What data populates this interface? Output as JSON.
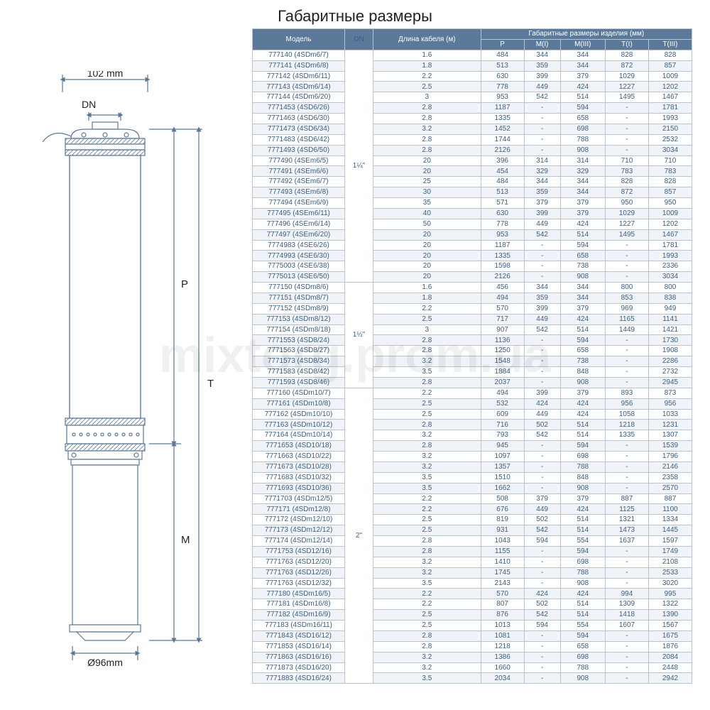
{
  "title": "Габаритные размеры",
  "watermark": "mixtorg.prom.ua",
  "diagram": {
    "width_top_label": "102 mm",
    "dn_label": "DN",
    "bottom_label": "Ø96mm",
    "dim_p": "P",
    "dim_t": "T",
    "dim_m": "M"
  },
  "headers": {
    "model": "Модель",
    "dn": "DN",
    "cable_len": "Длина кабеля (м)",
    "dims_group": "Габаритные размеры изделия (мм)",
    "p": "P",
    "m1": "M(I)",
    "m3": "M(III)",
    "t1": "T(I)",
    "t3": "T(III)"
  },
  "groups": [
    {
      "dn": "1¼\"",
      "rows": [
        {
          "m": "777140 (4SDm6/7)",
          "c": "1.6",
          "p": "484",
          "m1": "344",
          "m3": "344",
          "t1": "828",
          "t3": "828"
        },
        {
          "m": "777141 (4SDm6/8)",
          "c": "1.8",
          "p": "513",
          "m1": "359",
          "m3": "344",
          "t1": "872",
          "t3": "857"
        },
        {
          "m": "777142 (4SDm6/11)",
          "c": "2.2",
          "p": "630",
          "m1": "399",
          "m3": "379",
          "t1": "1029",
          "t3": "1009"
        },
        {
          "m": "777143 (4SDm6/14)",
          "c": "2.5",
          "p": "778",
          "m1": "449",
          "m3": "424",
          "t1": "1227",
          "t3": "1202"
        },
        {
          "m": "777144 (4SDm6/20)",
          "c": "3",
          "p": "953",
          "m1": "542",
          "m3": "514",
          "t1": "1495",
          "t3": "1467"
        },
        {
          "m": "7771453 (4SD6/26)",
          "c": "2.8",
          "p": "1187",
          "m1": "-",
          "m3": "594",
          "t1": "-",
          "t3": "1781"
        },
        {
          "m": "7771463 (4SD6/30)",
          "c": "2.8",
          "p": "1335",
          "m1": "-",
          "m3": "658",
          "t1": "-",
          "t3": "1993"
        },
        {
          "m": "7771473 (4SD6/34)",
          "c": "3.2",
          "p": "1452",
          "m1": "-",
          "m3": "698",
          "t1": "-",
          "t3": "2150"
        },
        {
          "m": "7771483 (4SD6/42)",
          "c": "2.8",
          "p": "1744",
          "m1": "-",
          "m3": "788",
          "t1": "-",
          "t3": "2532"
        },
        {
          "m": "7771493 (4SD6/50)",
          "c": "2.8",
          "p": "2126",
          "m1": "-",
          "m3": "908",
          "t1": "-",
          "t3": "3034"
        },
        {
          "m": "777490 (4SEm6/5)",
          "c": "20",
          "p": "396",
          "m1": "314",
          "m3": "314",
          "t1": "710",
          "t3": "710"
        },
        {
          "m": "777491 (4SEm6/6)",
          "c": "20",
          "p": "454",
          "m1": "329",
          "m3": "329",
          "t1": "783",
          "t3": "783"
        },
        {
          "m": "777492 (4SEm6/7)",
          "c": "25",
          "p": "484",
          "m1": "344",
          "m3": "344",
          "t1": "828",
          "t3": "828"
        },
        {
          "m": "777493 (4SEm6/8)",
          "c": "30",
          "p": "513",
          "m1": "359",
          "m3": "344",
          "t1": "872",
          "t3": "857"
        },
        {
          "m": "777494 (4SEm6/9)",
          "c": "35",
          "p": "571",
          "m1": "379",
          "m3": "379",
          "t1": "950",
          "t3": "950"
        },
        {
          "m": "777495 (4SEm6/11)",
          "c": "40",
          "p": "630",
          "m1": "399",
          "m3": "379",
          "t1": "1029",
          "t3": "1009"
        },
        {
          "m": "777496 (4SEm6/14)",
          "c": "50",
          "p": "778",
          "m1": "449",
          "m3": "424",
          "t1": "1227",
          "t3": "1202"
        },
        {
          "m": "777497 (4SEm6/20)",
          "c": "20",
          "p": "953",
          "m1": "542",
          "m3": "514",
          "t1": "1495",
          "t3": "1467"
        },
        {
          "m": "7774983 (4SE6/26)",
          "c": "20",
          "p": "1187",
          "m1": "-",
          "m3": "594",
          "t1": "-",
          "t3": "1781"
        },
        {
          "m": "7774993 (4SE6/30)",
          "c": "20",
          "p": "1335",
          "m1": "-",
          "m3": "658",
          "t1": "-",
          "t3": "1993"
        },
        {
          "m": "7775003 (4SE6/38)",
          "c": "20",
          "p": "1598",
          "m1": "-",
          "m3": "738",
          "t1": "-",
          "t3": "2336"
        },
        {
          "m": "7775013 (4SE6/50)",
          "c": "20",
          "p": "2126",
          "m1": "-",
          "m3": "908",
          "t1": "-",
          "t3": "3034"
        }
      ]
    },
    {
      "dn": "1½\"",
      "rows": [
        {
          "m": "777150 (4SDm8/6)",
          "c": "1.6",
          "p": "456",
          "m1": "344",
          "m3": "344",
          "t1": "800",
          "t3": "800"
        },
        {
          "m": "777151 (4SDm8/7)",
          "c": "1.8",
          "p": "494",
          "m1": "359",
          "m3": "344",
          "t1": "853",
          "t3": "838"
        },
        {
          "m": "777152 (4SDm8/9)",
          "c": "2.2",
          "p": "570",
          "m1": "399",
          "m3": "379",
          "t1": "969",
          "t3": "949"
        },
        {
          "m": "777153 (4SDm8/12)",
          "c": "2.5",
          "p": "717",
          "m1": "449",
          "m3": "424",
          "t1": "1165",
          "t3": "1141"
        },
        {
          "m": "777154 (4SDm8/18)",
          "c": "3",
          "p": "907",
          "m1": "542",
          "m3": "514",
          "t1": "1449",
          "t3": "1421"
        },
        {
          "m": "7771553 (4SD8/24)",
          "c": "2.8",
          "p": "1136",
          "m1": "-",
          "m3": "594",
          "t1": "-",
          "t3": "1730"
        },
        {
          "m": "7771563 (4SD8/27)",
          "c": "2.8",
          "p": "1250",
          "m1": "-",
          "m3": "658",
          "t1": "-",
          "t3": "1908"
        },
        {
          "m": "7771573 (4SD8/34)",
          "c": "3.2",
          "p": "1548",
          "m1": "-",
          "m3": "738",
          "t1": "-",
          "t3": "2286"
        },
        {
          "m": "7771583 (4SD8/42)",
          "c": "3.5",
          "p": "1884",
          "m1": "-",
          "m3": "848",
          "t1": "-",
          "t3": "2732"
        },
        {
          "m": "7771593 (4SD8/46)",
          "c": "2.8",
          "p": "2037",
          "m1": "-",
          "m3": "908",
          "t1": "-",
          "t3": "2945"
        }
      ]
    },
    {
      "dn": "2\"",
      "rows": [
        {
          "m": "777160 (4SDm10/7)",
          "c": "2.2",
          "p": "494",
          "m1": "399",
          "m3": "379",
          "t1": "893",
          "t3": "873"
        },
        {
          "m": "777161 (4SDm10/8)",
          "c": "2.5",
          "p": "532",
          "m1": "424",
          "m3": "424",
          "t1": "956",
          "t3": "956"
        },
        {
          "m": "777162 (4SDm10/10)",
          "c": "2.5",
          "p": "609",
          "m1": "449",
          "m3": "424",
          "t1": "1058",
          "t3": "1033"
        },
        {
          "m": "777163 (4SDm10/12)",
          "c": "2.8",
          "p": "716",
          "m1": "502",
          "m3": "514",
          "t1": "1218",
          "t3": "1231"
        },
        {
          "m": "777164 (4SDm10/14)",
          "c": "3.2",
          "p": "793",
          "m1": "542",
          "m3": "514",
          "t1": "1335",
          "t3": "1307"
        },
        {
          "m": "7771653 (4SD10/18)",
          "c": "2.8",
          "p": "945",
          "m1": "-",
          "m3": "594",
          "t1": "-",
          "t3": "1539"
        },
        {
          "m": "7771663 (4SD10/22)",
          "c": "3.2",
          "p": "1097",
          "m1": "-",
          "m3": "698",
          "t1": "-",
          "t3": "1796"
        },
        {
          "m": "7771673 (4SD10/28)",
          "c": "3.2",
          "p": "1357",
          "m1": "-",
          "m3": "788",
          "t1": "-",
          "t3": "2146"
        },
        {
          "m": "7771683 (4SD10/32)",
          "c": "3.5",
          "p": "1510",
          "m1": "-",
          "m3": "848",
          "t1": "-",
          "t3": "2358"
        },
        {
          "m": "7771693 (4SD10/36)",
          "c": "3.5",
          "p": "1662",
          "m1": "-",
          "m3": "908",
          "t1": "-",
          "t3": "2570"
        },
        {
          "m": "7771703 (4SDm12/5)",
          "c": "2.2",
          "p": "508",
          "m1": "379",
          "m3": "379",
          "t1": "887",
          "t3": "887"
        },
        {
          "m": "777171 (4SDm12/8)",
          "c": "2.2",
          "p": "676",
          "m1": "449",
          "m3": "424",
          "t1": "1125",
          "t3": "1100"
        },
        {
          "m": "777172 (4SDm12/10)",
          "c": "2.5",
          "p": "819",
          "m1": "502",
          "m3": "514",
          "t1": "1321",
          "t3": "1334"
        },
        {
          "m": "777173 (4SDm12/12)",
          "c": "2.5",
          "p": "931",
          "m1": "542",
          "m3": "514",
          "t1": "1473",
          "t3": "1445"
        },
        {
          "m": "777174 (4SDm12/14)",
          "c": "2.8",
          "p": "1043",
          "m1": "594",
          "m3": "554",
          "t1": "1637",
          "t3": "1597"
        },
        {
          "m": "7771753 (4SD12/16)",
          "c": "2.8",
          "p": "1155",
          "m1": "-",
          "m3": "594",
          "t1": "-",
          "t3": "1749"
        },
        {
          "m": "7771763 (4SD12/20)",
          "c": "3.2",
          "p": "1410",
          "m1": "-",
          "m3": "698",
          "t1": "-",
          "t3": "2108"
        },
        {
          "m": "7771763 (4SD12/26)",
          "c": "3.2",
          "p": "1745",
          "m1": "-",
          "m3": "788",
          "t1": "-",
          "t3": "2533"
        },
        {
          "m": "7771763 (4SD12/32)",
          "c": "3.5",
          "p": "2143",
          "m1": "-",
          "m3": "908",
          "t1": "-",
          "t3": "3020"
        },
        {
          "m": "777180 (4SDm16/5)",
          "c": "2.2",
          "p": "570",
          "m1": "424",
          "m3": "424",
          "t1": "994",
          "t3": "995"
        },
        {
          "m": "777181 (4SDm16/8)",
          "c": "2.2",
          "p": "807",
          "m1": "502",
          "m3": "514",
          "t1": "1309",
          "t3": "1322"
        },
        {
          "m": "777182 (4SDm16/9)",
          "c": "2.5",
          "p": "876",
          "m1": "542",
          "m3": "514",
          "t1": "1418",
          "t3": "1390"
        },
        {
          "m": "777183 (4SDm16/11)",
          "c": "2.5",
          "p": "1013",
          "m1": "594",
          "m3": "554",
          "t1": "1607",
          "t3": "1567"
        },
        {
          "m": "7771843 (4SD16/12)",
          "c": "2.8",
          "p": "1081",
          "m1": "-",
          "m3": "594",
          "t1": "-",
          "t3": "1675"
        },
        {
          "m": "7771853 (4SD16/14)",
          "c": "2.8",
          "p": "1218",
          "m1": "-",
          "m3": "658",
          "t1": "-",
          "t3": "1876"
        },
        {
          "m": "7771863 (4SD16/16)",
          "c": "3.2",
          "p": "1386",
          "m1": "-",
          "m3": "698",
          "t1": "-",
          "t3": "2084"
        },
        {
          "m": "7771873 (4SD16/20)",
          "c": "3.2",
          "p": "1660",
          "m1": "-",
          "m3": "788",
          "t1": "-",
          "t3": "2448"
        },
        {
          "m": "7771883 (4SD16/24)",
          "c": "3.5",
          "p": "2034",
          "m1": "-",
          "m3": "908",
          "t1": "-",
          "t3": "2942"
        }
      ]
    }
  ],
  "colors": {
    "header_bg": "#5b7a9a",
    "border": "#b8c5d0",
    "text": "#3a5e82",
    "stripe": "#f0f4f8"
  }
}
